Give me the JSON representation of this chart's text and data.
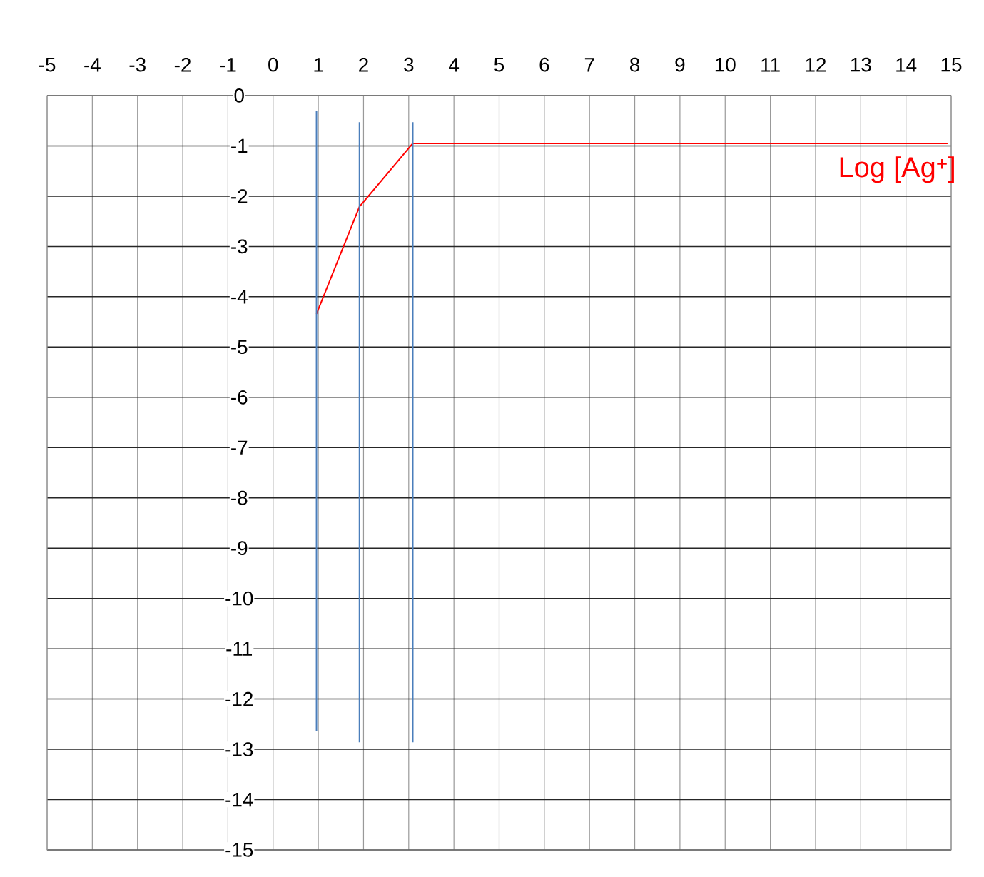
{
  "chart_data": {
    "type": "line",
    "xlim": [
      -5,
      15
    ],
    "ylim": [
      -15,
      0
    ],
    "xticks": [
      -5,
      -4,
      -3,
      -2,
      -1,
      0,
      1,
      2,
      3,
      4,
      5,
      6,
      7,
      8,
      9,
      10,
      11,
      12,
      13,
      14,
      15
    ],
    "yticks": [
      0,
      -1,
      -2,
      -3,
      -4,
      -5,
      -6,
      -7,
      -8,
      -9,
      -10,
      -11,
      -12,
      -13,
      -14,
      -15
    ],
    "grid": true,
    "series": [
      {
        "name": "Log [Ag$^{+}$]",
        "color": "#ff0000",
        "x": [
          0.96,
          1.91,
          3.09,
          14.92
        ],
        "values": [
          -4.34,
          -2.21,
          -0.95,
          -0.95
        ]
      },
      {
        "color": "#4a7ebb",
        "x": [
          0.96,
          0.96
        ],
        "values": [
          -0.31,
          -12.64
        ]
      },
      {
        "color": "#4a7ebb",
        "x": [
          1.91,
          1.91
        ],
        "values": [
          -0.53,
          -12.86
        ]
      },
      {
        "color": "#4a7ebb",
        "x": [
          3.09,
          3.09
        ],
        "values": [
          -0.53,
          -12.86
        ]
      }
    ]
  }
}
